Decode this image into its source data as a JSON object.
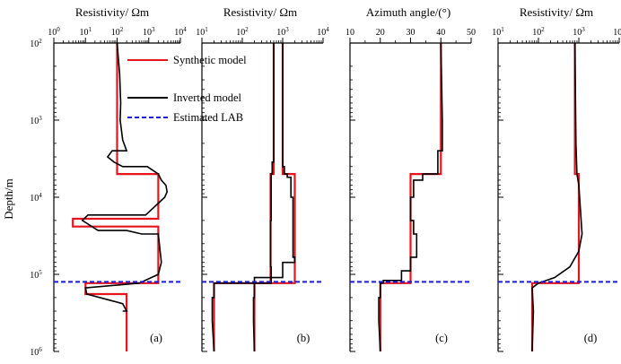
{
  "chart_data": [
    {
      "type": "line",
      "panel_label": "(a)",
      "title": "Resistivity/ Ωm",
      "xlabel": "Resistivity/ Ωm",
      "ylabel": "Depth/m",
      "x_scale": "log",
      "y_scale": "log",
      "y_inverted": true,
      "xlim": [
        1,
        10000
      ],
      "ylim": [
        100,
        1000000
      ],
      "x_tick_labels": [
        {
          "base": "10",
          "exp": "0"
        },
        {
          "base": "10",
          "exp": "1"
        },
        {
          "base": "10",
          "exp": "2"
        },
        {
          "base": "10",
          "exp": "3"
        },
        {
          "base": "10",
          "exp": "4"
        }
      ],
      "series": [
        {
          "name": "Synthetic model",
          "color": "#e8141c",
          "style": "solid",
          "x": [
            100,
            100,
            2000,
            2000,
            4,
            4,
            2000,
            2000,
            10,
            10,
            200,
            200
          ],
          "y": [
            100,
            5000,
            5000,
            19000,
            19000,
            24000,
            24000,
            130000,
            130000,
            180000,
            180000,
            1000000
          ]
        },
        {
          "name": "Inverted model",
          "color": "#000000",
          "style": "solid",
          "x": [
            100,
            120,
            120,
            130,
            130,
            125,
            125,
            150,
            150,
            200,
            200,
            70,
            70,
            50,
            50,
            80,
            80,
            150,
            150,
            900,
            900,
            2000,
            2000,
            2500,
            2500,
            3500,
            3500,
            3800,
            3800,
            3200,
            3200,
            800,
            800,
            12,
            12,
            8,
            8,
            25,
            25,
            200,
            200,
            600,
            600,
            2000,
            2000,
            2500,
            2500,
            2000,
            2000,
            500,
            500,
            10,
            10,
            11,
            11,
            150,
            150,
            200,
            200,
            150
          ],
          "y": [
            100,
            250,
            250,
            600,
            600,
            1000,
            1000,
            1800,
            1800,
            2500,
            2500,
            2500,
            2500,
            3000,
            3000,
            3500,
            3500,
            4000,
            4000,
            4000,
            4000,
            5000,
            5000,
            6000,
            6000,
            7000,
            7000,
            8500,
            8500,
            10000,
            10000,
            17000,
            17000,
            17000,
            17000,
            20000,
            20000,
            27000,
            27000,
            27000,
            27000,
            30000,
            30000,
            30000,
            30000,
            70000,
            70000,
            100000,
            100000,
            130000,
            130000,
            150000,
            150000,
            180000,
            180000,
            240000,
            240000,
            300000,
            300000,
            300000
          ]
        }
      ],
      "annotations": [
        {
          "label": "Estimated LAB",
          "depth": 125000
        }
      ]
    },
    {
      "type": "line",
      "panel_label": "(b)",
      "title": "Resistivity/ Ωm",
      "xlabel": "Resistivity/ Ωm",
      "x_scale": "log",
      "y_scale": "log",
      "y_inverted": true,
      "xlim": [
        10,
        10000
      ],
      "ylim": [
        100,
        1000000
      ],
      "x_tick_labels": [
        {
          "base": "10",
          "exp": "1"
        },
        {
          "base": "10",
          "exp": "2"
        },
        {
          "base": "10",
          "exp": "3"
        },
        {
          "base": "10",
          "exp": "4"
        }
      ],
      "series": [
        {
          "name": "Synthetic model (component 1)",
          "color": "#e8141c",
          "style": "solid",
          "x": [
            600,
            600,
            500,
            500,
            20,
            20
          ],
          "y": [
            100,
            5000,
            5000,
            130000,
            130000,
            1000000
          ]
        },
        {
          "name": "Synthetic model (component 2)",
          "color": "#e8141c",
          "style": "solid",
          "x": [
            1000,
            1000,
            2000,
            2000,
            200,
            200
          ],
          "y": [
            100,
            5000,
            5000,
            130000,
            130000,
            1000000
          ]
        },
        {
          "name": "Inverted model (component 1)",
          "color": "#000000",
          "style": "solid",
          "x": [
            600,
            600,
            550,
            550,
            520,
            520,
            500,
            500,
            520,
            520,
            20,
            20,
            18,
            18,
            20
          ],
          "y": [
            100,
            3500,
            3500,
            5000,
            5000,
            20000,
            20000,
            80000,
            80000,
            130000,
            130000,
            200000,
            200000,
            400000,
            1000000
          ]
        },
        {
          "name": "Inverted model (component 2)",
          "color": "#000000",
          "style": "solid",
          "x": [
            1000,
            1000,
            1100,
            1100,
            1300,
            1300,
            1600,
            1600,
            1800,
            1800,
            2000,
            2000,
            1000,
            1000,
            200,
            200,
            190,
            190,
            200
          ],
          "y": [
            100,
            4000,
            4000,
            5000,
            5000,
            5500,
            5500,
            10000,
            10000,
            60000,
            60000,
            70000,
            70000,
            110000,
            110000,
            200000,
            200000,
            400000,
            1000000
          ]
        }
      ],
      "annotations": [
        {
          "label": "Estimated LAB",
          "depth": 125000
        }
      ]
    },
    {
      "type": "line",
      "panel_label": "(c)",
      "title": "Azimuth angle/(°)",
      "xlabel": "Azimuth angle/(°)",
      "x_scale": "linear",
      "y_scale": "log",
      "y_inverted": true,
      "xlim": [
        10,
        50
      ],
      "ylim": [
        100,
        1000000
      ],
      "x_tick_labels": [
        {
          "base": "10",
          "exp": ""
        },
        {
          "base": "20",
          "exp": ""
        },
        {
          "base": "30",
          "exp": ""
        },
        {
          "base": "40",
          "exp": ""
        },
        {
          "base": "50",
          "exp": ""
        }
      ],
      "series": [
        {
          "name": "Synthetic model",
          "color": "#e8141c",
          "style": "solid",
          "x": [
            40,
            40,
            30,
            30,
            20,
            20
          ],
          "y": [
            100,
            5000,
            5000,
            130000,
            130000,
            1000000
          ]
        },
        {
          "name": "Inverted model",
          "color": "#000000",
          "style": "solid",
          "x": [
            40,
            40.5,
            40.5,
            40.5,
            39,
            39,
            34,
            34,
            31,
            31,
            30,
            30,
            31,
            31,
            32,
            32,
            30,
            30,
            27,
            27,
            21,
            21,
            20,
            20,
            19.5,
            19.5,
            20
          ],
          "y": [
            100,
            1000,
            1000,
            2500,
            2500,
            5000,
            5000,
            6000,
            6000,
            10000,
            10000,
            20000,
            20000,
            30000,
            30000,
            60000,
            60000,
            90000,
            90000,
            120000,
            120000,
            130000,
            130000,
            200000,
            200000,
            400000,
            1000000
          ]
        }
      ],
      "annotations": [
        {
          "label": "Estimated LAB",
          "depth": 125000
        }
      ]
    },
    {
      "type": "line",
      "panel_label": "(d)",
      "title": "Resistivity/ Ωm",
      "xlabel": "Resistivity/ Ωm",
      "x_scale": "log",
      "y_scale": "log",
      "y_inverted": true,
      "xlim": [
        10,
        10000
      ],
      "ylim": [
        100,
        1000000
      ],
      "x_tick_labels": [
        {
          "base": "10",
          "exp": "1"
        },
        {
          "base": "10",
          "exp": "2"
        },
        {
          "base": "10",
          "exp": "3"
        },
        {
          "base": "10",
          "exp": "4"
        }
      ],
      "series": [
        {
          "name": "Synthetic model",
          "color": "#e8141c",
          "style": "solid",
          "x": [
            800,
            800,
            1000,
            1000,
            70,
            70
          ],
          "y": [
            100,
            5000,
            5000,
            130000,
            130000,
            1000000
          ]
        },
        {
          "name": "Inverted model",
          "color": "#000000",
          "style": "solid",
          "x": [
            800,
            850,
            850,
            900,
            900,
            1000,
            1000,
            1100,
            1100,
            1200,
            1200,
            1000,
            1000,
            600,
            600,
            250,
            250,
            100,
            100,
            70,
            70,
            75,
            75,
            70
          ],
          "y": [
            100,
            2000,
            2000,
            5000,
            5000,
            7000,
            7000,
            15000,
            15000,
            30000,
            30000,
            50000,
            50000,
            80000,
            80000,
            110000,
            110000,
            130000,
            130000,
            150000,
            150000,
            300000,
            300000,
            1000000
          ]
        }
      ],
      "annotations": [
        {
          "label": "Estimated LAB",
          "depth": 125000
        }
      ]
    }
  ],
  "figure": {
    "ylabel": "Depth/m",
    "y_tick_labels": [
      {
        "base": "10",
        "exp": "2"
      },
      {
        "base": "10",
        "exp": "3"
      },
      {
        "base": "10",
        "exp": "4"
      },
      {
        "base": "10",
        "exp": "5"
      },
      {
        "base": "10",
        "exp": "6"
      }
    ],
    "legend": {
      "placement": "top-right of panel (a)",
      "entries": [
        {
          "label": "Synthetic model",
          "color": "#e8141c",
          "style": "solid"
        },
        {
          "label": "Inverted model",
          "color": "#000000",
          "style": "solid"
        },
        {
          "label": "Estimated LAB",
          "color": "#1a1adb",
          "style": "dashed"
        }
      ]
    },
    "lab_depth": 125000,
    "lab_color": "#1a1adb"
  }
}
